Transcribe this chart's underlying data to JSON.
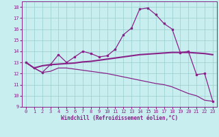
{
  "xlabel": "Windchill (Refroidissement éolien,°C)",
  "bg_color": "#c8eef0",
  "line_color": "#882288",
  "grid_color": "#99cccc",
  "xlim": [
    -0.5,
    23.5
  ],
  "ylim": [
    9,
    18.5
  ],
  "yticks": [
    9,
    10,
    11,
    12,
    13,
    14,
    15,
    16,
    17,
    18
  ],
  "xticks": [
    0,
    1,
    2,
    3,
    4,
    5,
    6,
    7,
    8,
    9,
    10,
    11,
    12,
    13,
    14,
    15,
    16,
    17,
    18,
    19,
    20,
    21,
    22,
    23
  ],
  "line1_x": [
    0,
    1,
    2,
    3,
    4,
    5,
    6,
    7,
    8,
    9,
    10,
    11,
    12,
    13,
    14,
    15,
    16,
    17,
    18,
    19,
    20,
    21,
    22,
    23
  ],
  "line1_y": [
    13.0,
    12.5,
    12.1,
    12.8,
    13.7,
    13.0,
    13.5,
    14.0,
    13.8,
    13.5,
    13.6,
    14.2,
    15.5,
    16.1,
    17.8,
    17.9,
    17.3,
    16.5,
    16.0,
    13.9,
    14.0,
    11.9,
    12.0,
    9.5
  ],
  "line2_x": [
    0,
    1,
    2,
    3,
    4,
    5,
    6,
    7,
    8,
    9,
    10,
    11,
    12,
    13,
    14,
    15,
    16,
    17,
    18,
    19,
    20,
    21,
    22,
    23
  ],
  "line2_y": [
    13.0,
    12.5,
    12.7,
    12.8,
    12.85,
    12.9,
    12.95,
    13.05,
    13.1,
    13.2,
    13.3,
    13.4,
    13.5,
    13.6,
    13.7,
    13.75,
    13.8,
    13.85,
    13.9,
    13.9,
    13.9,
    13.85,
    13.8,
    13.7
  ],
  "line3_x": [
    0,
    1,
    2,
    3,
    4,
    5,
    6,
    7,
    8,
    9,
    10,
    11,
    12,
    13,
    14,
    15,
    16,
    17,
    18,
    19,
    20,
    21,
    22,
    23
  ],
  "line3_y": [
    13.0,
    12.5,
    12.1,
    12.2,
    12.5,
    12.5,
    12.4,
    12.3,
    12.2,
    12.1,
    12.0,
    11.85,
    11.7,
    11.55,
    11.4,
    11.25,
    11.1,
    11.0,
    10.8,
    10.5,
    10.2,
    10.0,
    9.6,
    9.5
  ]
}
